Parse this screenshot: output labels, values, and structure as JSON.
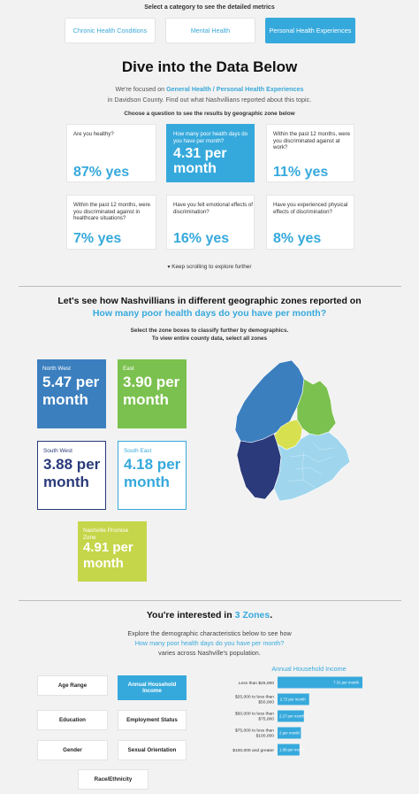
{
  "category": {
    "prompt": "Select a category to see the detailed metrics",
    "buttons": [
      {
        "label": "Chronic Health Conditions",
        "active": false
      },
      {
        "label": "Mental Health",
        "active": false
      },
      {
        "label": "Personal Health Experiences",
        "active": true
      }
    ]
  },
  "hero": {
    "title": "Dive into the Data Below",
    "intro_pre": "We're focused on ",
    "intro_topic": "General Health / Personal Health Experiences",
    "intro_line2": "in Davidson County. Find out what Nashvillians reported about this topic.",
    "question_prompt": "Choose a question to see the results by geographic zone below"
  },
  "questions": [
    {
      "q": "Are you healthy?",
      "value": "87% yes",
      "active": false
    },
    {
      "q": "How many poor health days do you have per month?",
      "value": "4.31 per month",
      "active": true
    },
    {
      "q": "Within the past 12 months, were you discriminated against at work?",
      "value": "11% yes",
      "active": false
    },
    {
      "q": "Within the past 12 months, were you discriminated against in healthcare situations?",
      "value": "7% yes",
      "active": false
    },
    {
      "q": "Have you felt emotional effects of discrimination?",
      "value": "16% yes",
      "active": false
    },
    {
      "q": "Have you experienced physical effects of discrimination?",
      "value": "8% yes",
      "active": false
    }
  ],
  "scroll_hint": "Keep scrolling to explore further",
  "zones_section": {
    "title": "Let's see how Nashvillians in different geographic zones reported on",
    "subtitle": "How many poor health days do you have per month?",
    "instruction_1": "Select the zone boxes to classify further by demographics.",
    "instruction_2": "To view entire county data, select all zones",
    "zones": [
      {
        "name": "North West",
        "value": "5.47 per month",
        "color": "#3b7fbf"
      },
      {
        "name": "East",
        "value": "3.90 per month",
        "color": "#7bc14f"
      },
      {
        "name": "South West",
        "value": "3.88 per month",
        "color": "#2a3a7a"
      },
      {
        "name": "South East",
        "value": "4.18 per month",
        "color": "#36a9dc"
      },
      {
        "name": "Nashville Promise Zone",
        "value": "4.91 per month",
        "color": "#c5d64a"
      }
    ]
  },
  "demographics": {
    "interest_pre": "You're interested in ",
    "interest_count": "3 Zones",
    "interest_post": ".",
    "explore_1": "Explore the demographic characteristics below to see how",
    "explore_2": "How many poor health days do you have per month?",
    "explore_3": "varies across Nashville's population.",
    "buttons": [
      {
        "label": "Age Range",
        "active": false
      },
      {
        "label": "Annual Household Income",
        "active": true
      },
      {
        "label": "Education",
        "active": false
      },
      {
        "label": "Employment Status",
        "active": false
      },
      {
        "label": "Gender",
        "active": false
      },
      {
        "label": "Sexual Orientation",
        "active": false
      },
      {
        "label": "Race/Ethnicity",
        "active": false
      }
    ]
  },
  "chart_data": {
    "type": "bar",
    "orientation": "horizontal",
    "title": "Annual Household Income",
    "categories": [
      "Less than $25,000",
      "$25,000 to less than $50,000",
      "$50,000 to less than $75,000",
      "$75,000 to less than $100,000",
      "$100,000 and greater"
    ],
    "values": [
      7.31,
      2.72,
      2.27,
      2.01,
      1.89
    ],
    "value_labels": [
      "7.31 per month",
      "2.72 per month",
      "2.27 per month",
      "2 per month",
      "1.89 per month"
    ],
    "color": "#36a9dc",
    "xlim": [
      0,
      7.31
    ]
  }
}
